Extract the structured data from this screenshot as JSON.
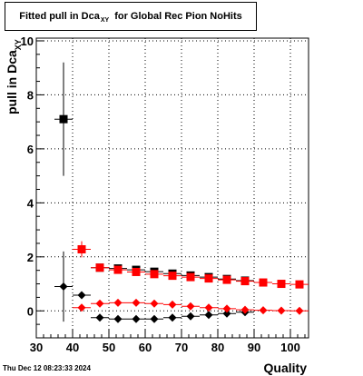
{
  "title": {
    "main": "Fitted pull in Dca",
    "subscript": "XY",
    "rest": "for Global Rec Pion NoHits"
  },
  "timestamp": "Thu Dec 12 08:23:33 2024",
  "chart_data": {
    "type": "scatter",
    "xlabel": "Quality",
    "ylabel": "pull in Dca",
    "ylabel_subscript": "XY",
    "xlim": [
      30,
      105
    ],
    "ylim": [
      -1,
      10.1
    ],
    "x_ticks": [
      30,
      40,
      50,
      60,
      70,
      80,
      90,
      100
    ],
    "y_ticks": [
      0,
      2,
      4,
      6,
      8,
      10
    ],
    "grid": true,
    "series": [
      {
        "marker": "square",
        "color": "#000000",
        "points": [
          {
            "x": 37.5,
            "y": 7.1,
            "yerr": 2.1
          },
          {
            "x": 47.5,
            "y": 1.6
          },
          {
            "x": 52.5,
            "y": 1.57
          },
          {
            "x": 57.5,
            "y": 1.52
          },
          {
            "x": 62.5,
            "y": 1.45
          },
          {
            "x": 67.5,
            "y": 1.38
          },
          {
            "x": 72.5,
            "y": 1.31
          },
          {
            "x": 77.5,
            "y": 1.25
          },
          {
            "x": 82.5,
            "y": 1.18
          },
          {
            "x": 87.5,
            "y": 1.12
          }
        ]
      },
      {
        "marker": "square",
        "color": "#ff0000",
        "points": [
          {
            "x": 42.5,
            "y": 2.28,
            "yerr": 0.3
          },
          {
            "x": 47.5,
            "y": 1.6
          },
          {
            "x": 52.5,
            "y": 1.52
          },
          {
            "x": 57.5,
            "y": 1.44
          },
          {
            "x": 62.5,
            "y": 1.36
          },
          {
            "x": 67.5,
            "y": 1.3
          },
          {
            "x": 72.5,
            "y": 1.25
          },
          {
            "x": 77.5,
            "y": 1.2
          },
          {
            "x": 82.5,
            "y": 1.15
          },
          {
            "x": 87.5,
            "y": 1.1
          },
          {
            "x": 92.5,
            "y": 1.05
          },
          {
            "x": 97.5,
            "y": 1.0
          },
          {
            "x": 102.5,
            "y": 0.98
          }
        ]
      },
      {
        "marker": "diamond",
        "color": "#000000",
        "points": [
          {
            "x": 37.5,
            "y": 0.9,
            "yerr": 1.3
          },
          {
            "x": 42.5,
            "y": 0.58
          },
          {
            "x": 47.5,
            "y": -0.25
          },
          {
            "x": 52.5,
            "y": -0.3
          },
          {
            "x": 57.5,
            "y": -0.3
          },
          {
            "x": 62.5,
            "y": -0.3
          },
          {
            "x": 67.5,
            "y": -0.25
          },
          {
            "x": 72.5,
            "y": -0.2
          },
          {
            "x": 77.5,
            "y": -0.15
          },
          {
            "x": 82.5,
            "y": -0.1
          },
          {
            "x": 87.5,
            "y": -0.05
          }
        ]
      },
      {
        "marker": "diamond",
        "color": "#ff0000",
        "points": [
          {
            "x": 42.5,
            "y": 0.12
          },
          {
            "x": 47.5,
            "y": 0.27
          },
          {
            "x": 52.5,
            "y": 0.3
          },
          {
            "x": 57.5,
            "y": 0.3
          },
          {
            "x": 62.5,
            "y": 0.27
          },
          {
            "x": 67.5,
            "y": 0.23
          },
          {
            "x": 72.5,
            "y": 0.17
          },
          {
            "x": 77.5,
            "y": 0.12
          },
          {
            "x": 82.5,
            "y": 0.08
          },
          {
            "x": 87.5,
            "y": 0.04
          },
          {
            "x": 92.5,
            "y": 0.02
          },
          {
            "x": 97.5,
            "y": 0.01
          },
          {
            "x": 102.5,
            "y": 0.0
          }
        ]
      }
    ]
  }
}
